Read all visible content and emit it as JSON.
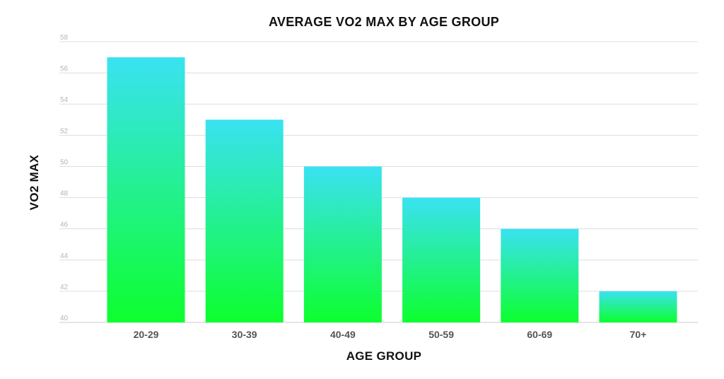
{
  "chart_data": {
    "type": "bar",
    "title": "AVERAGE VO2 MAX BY AGE GROUP",
    "xlabel": "AGE GROUP",
    "ylabel": "VO2 MAX",
    "categories": [
      "20-29",
      "30-39",
      "40-49",
      "50-59",
      "60-69",
      "70+"
    ],
    "values": [
      57,
      53,
      50,
      48,
      46,
      42
    ],
    "ylim": [
      40,
      58
    ],
    "yticks": [
      "40",
      "42",
      "44",
      "46",
      "48",
      "50",
      "52",
      "54",
      "56",
      "58"
    ],
    "grid": true,
    "legend": "none",
    "colors": {
      "bar_top": "#3ae2f2",
      "bar_bottom": "#0dff2e"
    }
  }
}
